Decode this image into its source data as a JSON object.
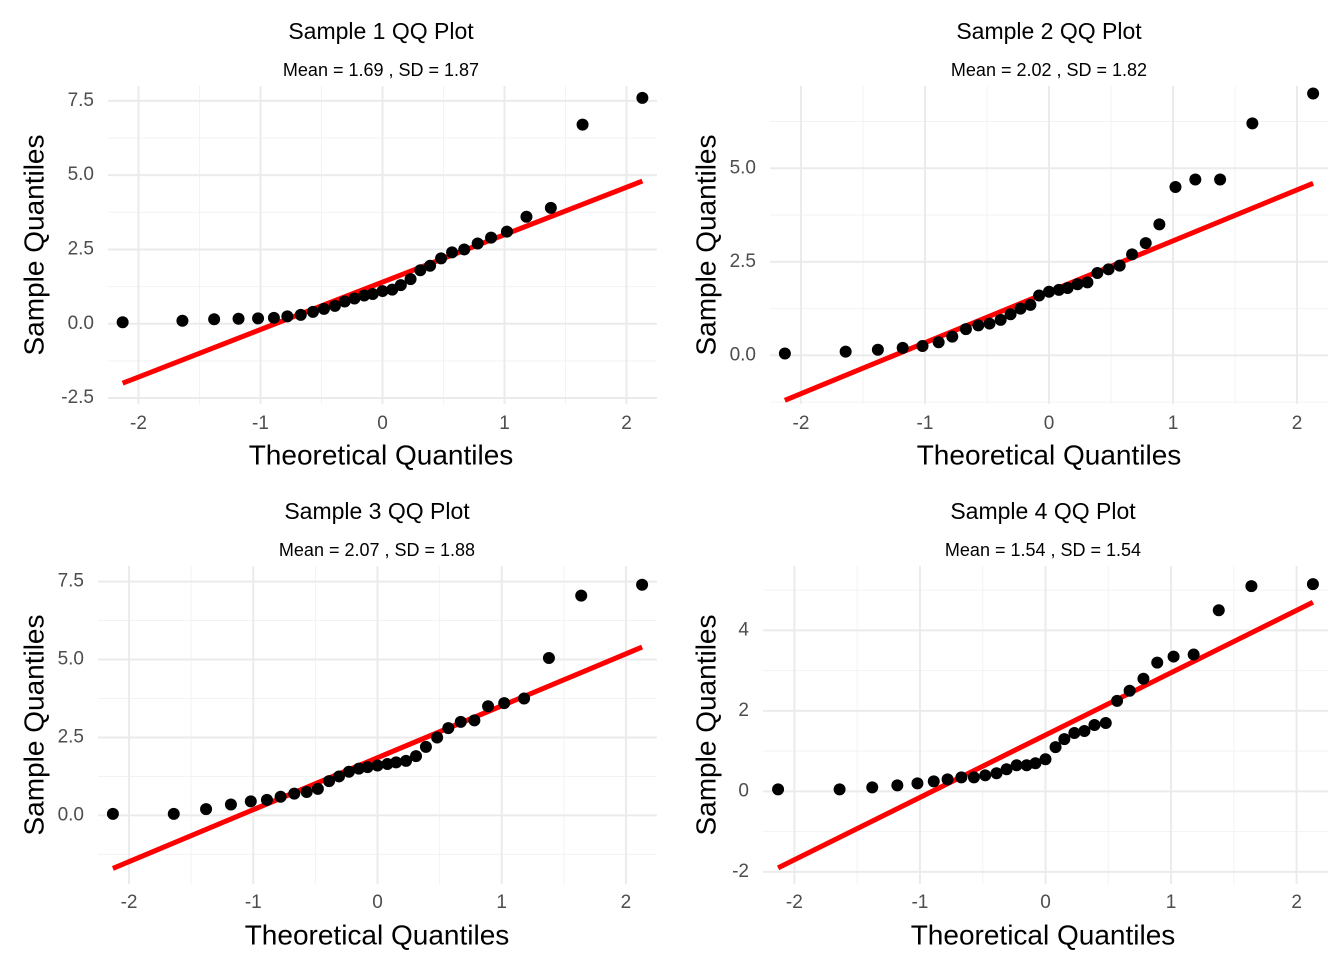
{
  "chart_data": [
    {
      "type": "scatter",
      "title": "Sample 1 QQ Plot",
      "subtitle": "Mean = 1.69 , SD = 1.87",
      "xlabel": "Theoretical Quantiles",
      "ylabel": "Sample Quantiles",
      "xlim": [
        -2.25,
        2.25
      ],
      "ylim": [
        -2.7,
        8.0
      ],
      "x_ticks": [
        -2,
        -1,
        0,
        1,
        2
      ],
      "x_tick_labels": [
        "-2",
        "-1",
        "0",
        "1",
        "2"
      ],
      "y_ticks": [
        -2.5,
        0,
        2.5,
        5,
        7.5
      ],
      "y_tick_labels": [
        "-2.5",
        "0.0",
        "2.5",
        "5.0",
        "7.5"
      ],
      "grid": true,
      "point_color": "#000000",
      "line_color": "#ff0000",
      "reference_line": {
        "x": [
          -2.13,
          2.13
        ],
        "y": [
          -2.0,
          4.8
        ]
      },
      "x": [
        -2.13,
        -1.64,
        -1.38,
        -1.18,
        -1.02,
        -0.89,
        -0.78,
        -0.67,
        -0.57,
        -0.48,
        -0.39,
        -0.31,
        -0.23,
        -0.15,
        -0.08,
        0.0,
        0.08,
        0.15,
        0.23,
        0.31,
        0.39,
        0.48,
        0.57,
        0.67,
        0.78,
        0.89,
        1.02,
        1.18,
        1.38,
        1.64,
        2.13
      ],
      "y": [
        0.05,
        0.1,
        0.15,
        0.17,
        0.18,
        0.2,
        0.25,
        0.3,
        0.4,
        0.5,
        0.6,
        0.75,
        0.85,
        0.95,
        1.0,
        1.1,
        1.15,
        1.3,
        1.5,
        1.8,
        1.95,
        2.2,
        2.4,
        2.5,
        2.7,
        2.9,
        3.1,
        3.6,
        3.9,
        6.7,
        7.6
      ]
    },
    {
      "type": "scatter",
      "title": "Sample 2 QQ Plot",
      "subtitle": "Mean = 2.02 , SD = 1.82",
      "xlabel": "Theoretical Quantiles",
      "ylabel": "Sample Quantiles",
      "xlim": [
        -2.25,
        2.25
      ],
      "ylim": [
        -1.3,
        7.2
      ],
      "x_ticks": [
        -2,
        -1,
        0,
        1,
        2
      ],
      "x_tick_labels": [
        "-2",
        "-1",
        "0",
        "1",
        "2"
      ],
      "y_ticks": [
        0,
        2.5,
        5
      ],
      "y_tick_labels": [
        "0.0",
        "2.5",
        "5.0"
      ],
      "grid": true,
      "point_color": "#000000",
      "line_color": "#ff0000",
      "reference_line": {
        "x": [
          -2.13,
          2.13
        ],
        "y": [
          -1.2,
          4.6
        ]
      },
      "x": [
        -2.13,
        -1.64,
        -1.38,
        -1.18,
        -1.02,
        -0.89,
        -0.78,
        -0.67,
        -0.57,
        -0.48,
        -0.39,
        -0.31,
        -0.23,
        -0.15,
        -0.08,
        0.0,
        0.08,
        0.15,
        0.23,
        0.31,
        0.39,
        0.48,
        0.57,
        0.67,
        0.78,
        0.89,
        1.02,
        1.18,
        1.38,
        1.64,
        2.13
      ],
      "y": [
        0.05,
        0.1,
        0.15,
        0.2,
        0.25,
        0.35,
        0.5,
        0.7,
        0.8,
        0.85,
        0.95,
        1.1,
        1.25,
        1.35,
        1.6,
        1.7,
        1.75,
        1.8,
        1.9,
        1.95,
        2.2,
        2.3,
        2.4,
        2.7,
        3.0,
        3.5,
        4.5,
        4.7,
        4.7,
        6.2,
        7.0
      ]
    },
    {
      "type": "scatter",
      "title": "Sample 3 QQ Plot",
      "subtitle": "Mean = 2.07 , SD = 1.88",
      "xlabel": "Theoretical Quantiles",
      "ylabel": "Sample Quantiles",
      "xlim": [
        -2.25,
        2.25
      ],
      "ylim": [
        -2.2,
        8.0
      ],
      "x_ticks": [
        -2,
        -1,
        0,
        1,
        2
      ],
      "x_tick_labels": [
        "-2",
        "-1",
        "0",
        "1",
        "2"
      ],
      "y_ticks": [
        0,
        2.5,
        5,
        7.5
      ],
      "y_tick_labels": [
        "0.0",
        "2.5",
        "5.0",
        "7.5"
      ],
      "grid": true,
      "point_color": "#000000",
      "line_color": "#ff0000",
      "reference_line": {
        "x": [
          -2.13,
          2.13
        ],
        "y": [
          -1.7,
          5.4
        ]
      },
      "x": [
        -2.13,
        -1.64,
        -1.38,
        -1.18,
        -1.02,
        -0.89,
        -0.78,
        -0.67,
        -0.57,
        -0.48,
        -0.39,
        -0.31,
        -0.23,
        -0.15,
        -0.08,
        0.0,
        0.08,
        0.15,
        0.23,
        0.31,
        0.39,
        0.48,
        0.57,
        0.67,
        0.78,
        0.89,
        1.02,
        1.18,
        1.38,
        1.64,
        2.13
      ],
      "y": [
        0.05,
        0.05,
        0.2,
        0.35,
        0.45,
        0.5,
        0.6,
        0.7,
        0.75,
        0.85,
        1.1,
        1.25,
        1.4,
        1.5,
        1.55,
        1.6,
        1.65,
        1.7,
        1.75,
        1.9,
        2.2,
        2.5,
        2.8,
        3.0,
        3.05,
        3.5,
        3.6,
        3.75,
        5.05,
        7.05,
        7.4
      ]
    },
    {
      "type": "scatter",
      "title": "Sample 4 QQ Plot",
      "subtitle": "Mean = 1.54 , SD = 1.54",
      "xlabel": "Theoretical Quantiles",
      "ylabel": "Sample Quantiles",
      "xlim": [
        -2.25,
        2.25
      ],
      "ylim": [
        -2.3,
        5.6
      ],
      "x_ticks": [
        -2,
        -1,
        0,
        1,
        2
      ],
      "x_tick_labels": [
        "-2",
        "-1",
        "0",
        "1",
        "2"
      ],
      "y_ticks": [
        -2,
        0,
        2,
        4
      ],
      "y_tick_labels": [
        "-2",
        "0",
        "2",
        "4"
      ],
      "grid": true,
      "point_color": "#000000",
      "line_color": "#ff0000",
      "reference_line": {
        "x": [
          -2.13,
          2.13
        ],
        "y": [
          -1.9,
          4.7
        ]
      },
      "x": [
        -2.13,
        -1.64,
        -1.38,
        -1.18,
        -1.02,
        -0.89,
        -0.78,
        -0.67,
        -0.57,
        -0.48,
        -0.39,
        -0.31,
        -0.23,
        -0.15,
        -0.08,
        0.0,
        0.08,
        0.15,
        0.23,
        0.31,
        0.39,
        0.48,
        0.57,
        0.67,
        0.78,
        0.89,
        1.02,
        1.18,
        1.38,
        1.64,
        2.13
      ],
      "y": [
        0.05,
        0.05,
        0.1,
        0.15,
        0.2,
        0.25,
        0.3,
        0.35,
        0.35,
        0.4,
        0.45,
        0.55,
        0.65,
        0.65,
        0.7,
        0.8,
        1.1,
        1.3,
        1.45,
        1.5,
        1.65,
        1.7,
        2.25,
        2.5,
        2.8,
        3.2,
        3.35,
        3.4,
        4.5,
        5.1,
        5.15
      ]
    }
  ]
}
